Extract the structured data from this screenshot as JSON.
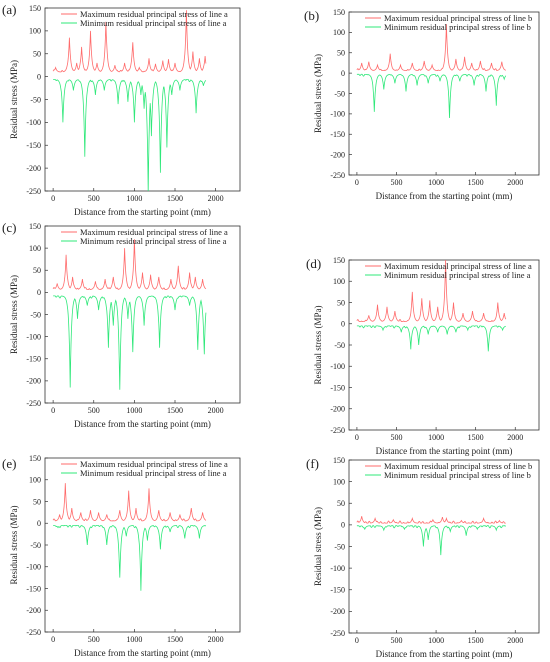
{
  "figure": {
    "colors": {
      "max": "#ff6b6b",
      "min": "#2fe87a",
      "axis": "#333333"
    }
  },
  "chart_data": [
    {
      "id": "a",
      "panel_label": "(a)",
      "type": "line",
      "xlabel": "Distance from the starting point (mm)",
      "ylabel": "Residual stress (MPa)",
      "xlim": [
        -100,
        2300
      ],
      "ylim": [
        -250,
        150
      ],
      "xticks": [
        0,
        500,
        1000,
        1500,
        2000
      ],
      "yticks": [
        -250,
        -200,
        -150,
        -100,
        -50,
        0,
        50,
        100,
        150
      ],
      "grid": false,
      "legend_position": "top-left",
      "baseline": {
        "max": 10,
        "min": -6
      },
      "x_extent": [
        0,
        1880
      ],
      "series": [
        {
          "name": "Maximum residual principal stress of line a",
          "color_key": "max",
          "peaks": [
            [
              30,
              20
            ],
            [
              200,
              85
            ],
            [
              290,
              30
            ],
            [
              350,
              65
            ],
            [
              460,
              100
            ],
            [
              540,
              30
            ],
            [
              650,
              120
            ],
            [
              760,
              25
            ],
            [
              880,
              30
            ],
            [
              980,
              75
            ],
            [
              1060,
              20
            ],
            [
              1180,
              40
            ],
            [
              1260,
              28
            ],
            [
              1350,
              35
            ],
            [
              1420,
              38
            ],
            [
              1500,
              30
            ],
            [
              1640,
              145
            ],
            [
              1720,
              55
            ],
            [
              1800,
              40
            ],
            [
              1870,
              45
            ]
          ]
        },
        {
          "name": "Minimum residual principal stress of line a",
          "color_key": "min",
          "peaks": [
            [
              120,
              -100
            ],
            [
              250,
              -30
            ],
            [
              390,
              -175
            ],
            [
              520,
              -40
            ],
            [
              630,
              -30
            ],
            [
              800,
              -60
            ],
            [
              920,
              -55
            ],
            [
              1000,
              -100
            ],
            [
              1080,
              -40
            ],
            [
              1120,
              -70
            ],
            [
              1170,
              -255
            ],
            [
              1210,
              -130
            ],
            [
              1320,
              -210
            ],
            [
              1400,
              -155
            ],
            [
              1460,
              -40
            ],
            [
              1560,
              -30
            ],
            [
              1760,
              -80
            ],
            [
              1850,
              -20
            ]
          ]
        }
      ]
    },
    {
      "id": "b",
      "panel_label": "(b)",
      "type": "line",
      "xlabel": "Distance from the starting point (mm)",
      "ylabel": "Residual stress (MPa)",
      "xlim": [
        -100,
        2300
      ],
      "ylim": [
        -250,
        150
      ],
      "xticks": [
        0,
        500,
        1000,
        1500,
        2000
      ],
      "yticks": [
        -250,
        -200,
        -150,
        -100,
        -50,
        0,
        50,
        100,
        150
      ],
      "grid": false,
      "legend_position": "top-left",
      "baseline": {
        "max": 6,
        "min": -3
      },
      "x_extent": [
        0,
        1880
      ],
      "series": [
        {
          "name": "Maximum residual principal stress of line b",
          "color_key": "max",
          "peaks": [
            [
              60,
              25
            ],
            [
              150,
              28
            ],
            [
              260,
              20
            ],
            [
              420,
              48
            ],
            [
              550,
              20
            ],
            [
              700,
              25
            ],
            [
              850,
              30
            ],
            [
              950,
              20
            ],
            [
              1130,
              120
            ],
            [
              1250,
              35
            ],
            [
              1360,
              40
            ],
            [
              1450,
              25
            ],
            [
              1560,
              30
            ],
            [
              1700,
              25
            ],
            [
              1830,
              28
            ]
          ]
        },
        {
          "name": "Minimum residual principal stress of line b",
          "color_key": "min",
          "peaks": [
            [
              220,
              -95
            ],
            [
              340,
              -40
            ],
            [
              480,
              -25
            ],
            [
              620,
              -45
            ],
            [
              760,
              -30
            ],
            [
              900,
              -25
            ],
            [
              1050,
              -20
            ],
            [
              1170,
              -110
            ],
            [
              1300,
              -20
            ],
            [
              1480,
              -30
            ],
            [
              1630,
              -45
            ],
            [
              1760,
              -80
            ],
            [
              1860,
              -15
            ]
          ]
        }
      ]
    },
    {
      "id": "c",
      "panel_label": "(c)",
      "type": "line",
      "xlabel": "Distance from the starting point (mm)",
      "ylabel": "Residual stress (MPa)",
      "xlim": [
        -100,
        2300
      ],
      "ylim": [
        -250,
        150
      ],
      "xticks": [
        0,
        500,
        1000,
        1500,
        2000
      ],
      "yticks": [
        -250,
        -200,
        -150,
        -100,
        -50,
        0,
        50,
        100,
        150
      ],
      "grid": false,
      "legend_position": "top-left",
      "baseline": {
        "max": 6,
        "min": -8
      },
      "x_extent": [
        0,
        1880
      ],
      "series": [
        {
          "name": "Maximum residual principal stress of line a",
          "color_key": "max",
          "peaks": [
            [
              50,
              20
            ],
            [
              160,
              85
            ],
            [
              240,
              35
            ],
            [
              360,
              30
            ],
            [
              520,
              25
            ],
            [
              640,
              30
            ],
            [
              740,
              35
            ],
            [
              880,
              100
            ],
            [
              1000,
              120
            ],
            [
              1100,
              45
            ],
            [
              1200,
              40
            ],
            [
              1300,
              35
            ],
            [
              1450,
              30
            ],
            [
              1540,
              60
            ],
            [
              1680,
              45
            ],
            [
              1750,
              35
            ],
            [
              1840,
              30
            ]
          ]
        },
        {
          "name": "Minimum residual principal stress of line a",
          "color_key": "min",
          "peaks": [
            [
              210,
              -215
            ],
            [
              300,
              -60
            ],
            [
              420,
              -30
            ],
            [
              560,
              -40
            ],
            [
              680,
              -125
            ],
            [
              740,
              -75
            ],
            [
              820,
              -220
            ],
            [
              920,
              -60
            ],
            [
              980,
              -135
            ],
            [
              1120,
              -75
            ],
            [
              1310,
              -125
            ],
            [
              1500,
              -40
            ],
            [
              1680,
              -30
            ],
            [
              1780,
              -130
            ],
            [
              1860,
              -140
            ]
          ]
        }
      ]
    },
    {
      "id": "d",
      "panel_label": "(d)",
      "type": "line",
      "xlabel": "Distance from the starting point (mm)",
      "ylabel": "Residual stress (MPa)",
      "xlim": [
        -100,
        2300
      ],
      "ylim": [
        -250,
        150
      ],
      "xticks": [
        0,
        500,
        1000,
        1500,
        2000
      ],
      "yticks": [
        -250,
        -200,
        -150,
        -100,
        -50,
        0,
        50,
        100,
        150
      ],
      "grid": false,
      "legend_position": "top-left",
      "baseline": {
        "max": 5,
        "min": -5
      },
      "x_extent": [
        0,
        1880
      ],
      "series": [
        {
          "name": "Maximum residual principal stress of line a",
          "color_key": "max",
          "peaks": [
            [
              150,
              20
            ],
            [
              260,
              45
            ],
            [
              380,
              40
            ],
            [
              480,
              30
            ],
            [
              700,
              75
            ],
            [
              820,
              60
            ],
            [
              920,
              55
            ],
            [
              1020,
              40
            ],
            [
              1120,
              150
            ],
            [
              1220,
              50
            ],
            [
              1340,
              25
            ],
            [
              1460,
              30
            ],
            [
              1600,
              25
            ],
            [
              1780,
              50
            ],
            [
              1860,
              25
            ]
          ]
        },
        {
          "name": "Minimum residual principal stress of line a",
          "color_key": "min",
          "peaks": [
            [
              330,
              -15
            ],
            [
              560,
              -20
            ],
            [
              680,
              -60
            ],
            [
              780,
              -50
            ],
            [
              900,
              -25
            ],
            [
              1020,
              -20
            ],
            [
              1140,
              -25
            ],
            [
              1250,
              -20
            ],
            [
              1400,
              -15
            ],
            [
              1660,
              -65
            ],
            [
              1840,
              -15
            ]
          ]
        }
      ]
    },
    {
      "id": "e",
      "panel_label": "(e)",
      "type": "line",
      "xlabel": "Distance from the starting point (mm)",
      "ylabel": "Residual stress (MPa)",
      "xlim": [
        -100,
        2300
      ],
      "ylim": [
        -250,
        150
      ],
      "xticks": [
        0,
        500,
        1000,
        1500,
        2000
      ],
      "yticks": [
        -250,
        -200,
        -150,
        -100,
        -50,
        0,
        50,
        100,
        150
      ],
      "grid": false,
      "legend_position": "top-left",
      "baseline": {
        "max": 5,
        "min": -5
      },
      "x_extent": [
        0,
        1880
      ],
      "series": [
        {
          "name": "Maximum residual principal stress of line a",
          "color_key": "max",
          "peaks": [
            [
              80,
              20
            ],
            [
              150,
              92
            ],
            [
              230,
              35
            ],
            [
              340,
              25
            ],
            [
              460,
              30
            ],
            [
              560,
              25
            ],
            [
              660,
              20
            ],
            [
              820,
              30
            ],
            [
              930,
              75
            ],
            [
              1020,
              35
            ],
            [
              1180,
              80
            ],
            [
              1300,
              30
            ],
            [
              1440,
              25
            ],
            [
              1560,
              20
            ],
            [
              1700,
              35
            ],
            [
              1840,
              25
            ]
          ]
        },
        {
          "name": "Minimum residual principal stress of line a",
          "color_key": "min",
          "peaks": [
            [
              60,
              -10
            ],
            [
              420,
              -50
            ],
            [
              660,
              -50
            ],
            [
              820,
              -125
            ],
            [
              900,
              -30
            ],
            [
              1080,
              -155
            ],
            [
              1160,
              -40
            ],
            [
              1320,
              -60
            ],
            [
              1440,
              -20
            ],
            [
              1620,
              -35
            ],
            [
              1800,
              -35
            ]
          ]
        }
      ]
    },
    {
      "id": "f",
      "panel_label": "(f)",
      "type": "line",
      "xlabel": "Distance from the starting point (mm)",
      "ylabel": "Residual stress (MPa)",
      "xlim": [
        -100,
        2300
      ],
      "ylim": [
        -250,
        150
      ],
      "xticks": [
        0,
        500,
        1000,
        1500,
        2000
      ],
      "yticks": [
        -250,
        -200,
        -150,
        -100,
        -50,
        0,
        50,
        100,
        150
      ],
      "grid": false,
      "legend_position": "top-left",
      "baseline": {
        "max": 4,
        "min": -2
      },
      "x_extent": [
        0,
        1880
      ],
      "series": [
        {
          "name": "Maximum residual principal stress of line b",
          "color_key": "max",
          "peaks": [
            [
              60,
              20
            ],
            [
              230,
              15
            ],
            [
              460,
              12
            ],
            [
              700,
              15
            ],
            [
              960,
              12
            ],
            [
              1080,
              18
            ],
            [
              1130,
              15
            ],
            [
              1320,
              10
            ],
            [
              1600,
              15
            ],
            [
              1800,
              10
            ]
          ]
        },
        {
          "name": "Minimum residual principal stress of line b",
          "color_key": "min",
          "peaks": [
            [
              100,
              -10
            ],
            [
              340,
              -12
            ],
            [
              600,
              -10
            ],
            [
              840,
              -50
            ],
            [
              900,
              -35
            ],
            [
              1060,
              -70
            ],
            [
              1180,
              -15
            ],
            [
              1380,
              -25
            ],
            [
              1520,
              -10
            ],
            [
              1760,
              -12
            ]
          ]
        }
      ]
    }
  ]
}
